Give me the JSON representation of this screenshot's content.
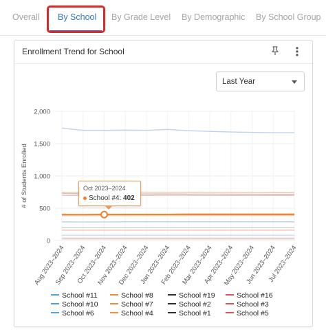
{
  "tabs": [
    {
      "label": "Overall",
      "active": false
    },
    {
      "label": "By School",
      "active": true
    },
    {
      "label": "By Grade Level",
      "active": false
    },
    {
      "label": "By Demographic",
      "active": false
    },
    {
      "label": "By School Group",
      "active": false
    }
  ],
  "card": {
    "title": "Enrollment Trend for School",
    "pin_icon": "pin-icon",
    "more_icon": "more-vertical-icon"
  },
  "period_select": {
    "value": "Last Year"
  },
  "colors": {
    "active_tab": "#2f77c8",
    "highlight": "#d42a2a",
    "tooltip_border": "#ee9a55"
  },
  "chart_data": {
    "type": "line",
    "ylabel": "# of Students Enrolled",
    "xlabel": "",
    "ylim": [
      0,
      2000
    ],
    "yticks": [
      "0",
      "500",
      "1,000",
      "1,500",
      "2,000"
    ],
    "categories": [
      "Aug 2023–2024",
      "Sep 2023–2024",
      "Oct 2023–2024",
      "Nov 2023–2024",
      "Dec 2023–2024",
      "Jan 2023–2024",
      "Feb 2023–2024",
      "Mar 2023–2024",
      "Apr 2023–2024",
      "May 2023–2024",
      "Jun 2023–2024",
      "Jul 2023–2024"
    ],
    "grid": true,
    "legend_position": "bottom",
    "series": [
      {
        "name": "School #11",
        "color": "#bcd3ec",
        "values": [
          1740,
          1705,
          1705,
          1710,
          1705,
          1720,
          1700,
          1690,
          1680,
          1675,
          1670,
          1670
        ]
      },
      {
        "name": "School #8",
        "color": "#f2c9a8",
        "values": [
          745,
          740,
          742,
          745,
          748,
          745,
          746,
          745,
          744,
          743,
          742,
          742
        ]
      },
      {
        "name": "School #19",
        "color": "#c8c8c8",
        "values": [
          730,
          722,
          720,
          722,
          722,
          722,
          720,
          720,
          718,
          718,
          716,
          716
        ]
      },
      {
        "name": "School #16",
        "color": "#f0bdb8",
        "values": [
          700,
          698,
          700,
          700,
          700,
          702,
          702,
          700,
          700,
          700,
          700,
          700
        ]
      },
      {
        "name": "School #4",
        "color": "#ee7f2d",
        "values": [
          400,
          398,
          402,
          402,
          402,
          402,
          405,
          405,
          405,
          405,
          405,
          405
        ]
      },
      {
        "name": "School #7",
        "color": "#f6c6a0",
        "values": [
          385,
          385,
          387,
          387,
          387,
          387,
          387,
          387,
          387,
          387,
          387,
          387
        ]
      },
      {
        "name": "School #10",
        "color": "#bcd3ec",
        "values": [
          290,
          287,
          288,
          290,
          290,
          290,
          290,
          290,
          290,
          290,
          290,
          290
        ]
      },
      {
        "name": "School #2",
        "color": "#d0d0d0",
        "values": [
          200,
          200,
          200,
          200,
          200,
          200,
          200,
          200,
          200,
          200,
          200,
          200
        ]
      },
      {
        "name": "School #3",
        "color": "#f0c1bc",
        "values": [
          160,
          160,
          160,
          160,
          160,
          160,
          160,
          160,
          160,
          160,
          160,
          160
        ]
      },
      {
        "name": "School #6",
        "color": "#c8dcf0",
        "values": [
          80,
          80,
          80,
          80,
          80,
          80,
          80,
          80,
          80,
          80,
          80,
          80
        ]
      },
      {
        "name": "School #1",
        "color": "#dddddd",
        "values": [
          40,
          40,
          40,
          40,
          40,
          40,
          40,
          40,
          40,
          40,
          40,
          40
        ]
      },
      {
        "name": "School #5",
        "color": "#f3cbc6",
        "values": [
          25,
          25,
          25,
          25,
          25,
          25,
          25,
          25,
          25,
          25,
          25,
          25
        ]
      }
    ],
    "tooltip": {
      "category": "Oct 2023–2024",
      "series": "School #4:",
      "value": "402"
    }
  },
  "legend": [
    {
      "label": "School #11",
      "color": "#4aa3df"
    },
    {
      "label": "School #8",
      "color": "#ee8a3a"
    },
    {
      "label": "School #19",
      "color": "#2b2b2b"
    },
    {
      "label": "School #16",
      "color": "#d9534f"
    },
    {
      "label": "School #10",
      "color": "#4aa3df"
    },
    {
      "label": "School #7",
      "color": "#ee8a3a"
    },
    {
      "label": "School #2",
      "color": "#2b2b2b"
    },
    {
      "label": "School #3",
      "color": "#d9534f"
    },
    {
      "label": "School #6",
      "color": "#4aa3df"
    },
    {
      "label": "School #4",
      "color": "#ee8a3a"
    },
    {
      "label": "School #1",
      "color": "#2b2b2b"
    },
    {
      "label": "School #5",
      "color": "#d9534f"
    }
  ]
}
